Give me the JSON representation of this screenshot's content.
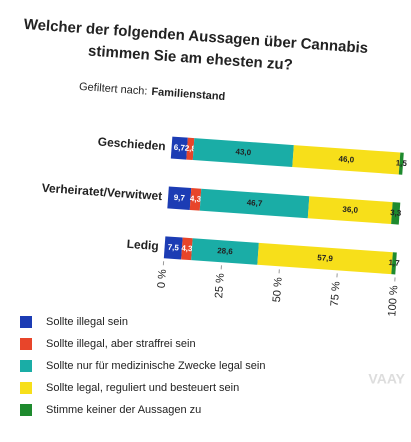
{
  "chart_data": {
    "type": "stacked-bar-horizontal",
    "title": [
      "Welcher der folgenden Aussagen über Cannabis",
      "stimmen Sie am ehesten zu?"
    ],
    "filter_label": "Gefiltert nach:",
    "filter_value": "Familienstand",
    "categories": [
      "Geschieden",
      "Verheiratet/Verwitwet",
      "Ledig"
    ],
    "series": [
      {
        "name": "Sollte illegal sein",
        "color": "#1c3cb4",
        "values": [
          6.7,
          9.7,
          7.5
        ],
        "value_labels": [
          "6,7",
          "9,7",
          "7,5"
        ]
      },
      {
        "name": "Sollte illegal, aber straffrei sein",
        "color": "#e8452a",
        "values": [
          2.8,
          4.3,
          4.3
        ],
        "value_labels": [
          "2,8",
          "4,3",
          "4,3"
        ]
      },
      {
        "name": "Sollte nur für medizinische Zwecke legal sein",
        "color": "#1aada6",
        "values": [
          43.0,
          46.7,
          28.6
        ],
        "value_labels": [
          "43,0",
          "46,7",
          "28,6"
        ]
      },
      {
        "name": "Sollte legal, reguliert und besteuert sein",
        "color": "#f7df1a",
        "values": [
          46.0,
          36.0,
          57.9
        ],
        "value_labels": [
          "46,0",
          "36,0",
          "57,9"
        ]
      },
      {
        "name": "Stimme keiner der Aussagen zu",
        "color": "#1e8a2e",
        "values": [
          1.5,
          3.3,
          1.7
        ],
        "value_labels": [
          "1,5",
          "3,3",
          "1,7"
        ]
      }
    ],
    "xlim": [
      0,
      100
    ],
    "xticks": [
      {
        "value": 0,
        "label": "0 %"
      },
      {
        "value": 25,
        "label": "25 %"
      },
      {
        "value": 50,
        "label": "50 %"
      },
      {
        "value": 75,
        "label": "75 %"
      },
      {
        "value": 100,
        "label": "100 %"
      }
    ],
    "watermark": "VAAY"
  }
}
